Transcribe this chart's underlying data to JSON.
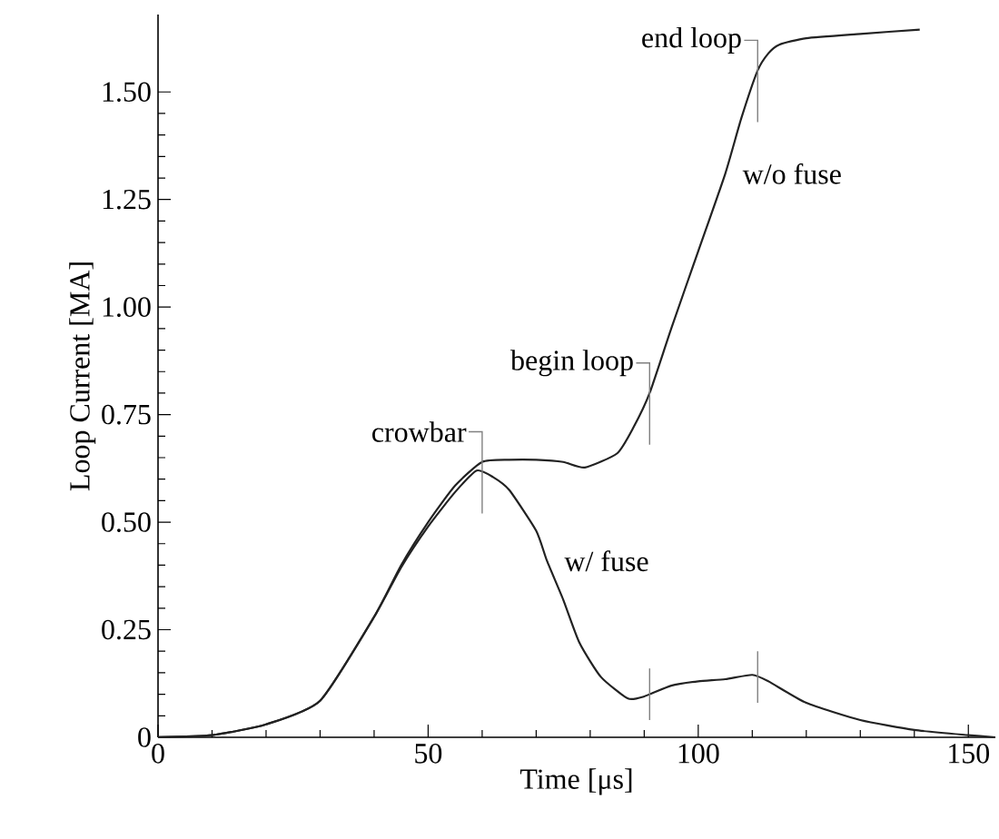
{
  "chart_data": {
    "type": "line",
    "xlabel": "Time  [μs]",
    "ylabel": "Loop Current  [MA]",
    "xlim": [
      0,
      155
    ],
    "ylim": [
      0,
      1.68
    ],
    "xticks": [
      0,
      50,
      100,
      150
    ],
    "yticks": [
      0,
      {
        "value": 0.25,
        "label": "0.25"
      },
      {
        "value": 0.5,
        "label": "0.50"
      },
      {
        "value": 0.75,
        "label": "0.75"
      },
      {
        "value": 1,
        "label": "1.00"
      },
      {
        "value": 1.25,
        "label": "1.25"
      },
      {
        "value": 1.5,
        "label": "1.50"
      }
    ],
    "grid": false,
    "legend": false,
    "marker": "none",
    "line_style": "solid",
    "series": [
      {
        "name": "w/o fuse",
        "color": "#222222",
        "x": [
          0,
          10,
          20,
          30,
          40,
          45,
          50,
          55,
          60,
          65,
          70,
          75,
          79,
          85,
          88,
          91,
          95,
          100,
          105,
          108,
          111,
          113,
          115,
          120,
          130,
          141
        ],
        "values": [
          0,
          0.005,
          0.03,
          0.085,
          0.28,
          0.4,
          0.5,
          0.585,
          0.64,
          0.645,
          0.645,
          0.64,
          0.627,
          0.66,
          0.72,
          0.8,
          0.95,
          1.13,
          1.31,
          1.44,
          1.55,
          1.59,
          1.61,
          1.625,
          1.635,
          1.645
        ]
      },
      {
        "name": "w/ fuse",
        "color": "#222222",
        "x": [
          0,
          10,
          20,
          30,
          40,
          45,
          50,
          55,
          59,
          62,
          65,
          70,
          72,
          75,
          78,
          82,
          87,
          90,
          95,
          100,
          105,
          110,
          113,
          120,
          130,
          140,
          150,
          155
        ],
        "values": [
          0,
          0.005,
          0.03,
          0.085,
          0.28,
          0.395,
          0.49,
          0.57,
          0.62,
          0.605,
          0.575,
          0.48,
          0.41,
          0.32,
          0.22,
          0.14,
          0.09,
          0.095,
          0.12,
          0.13,
          0.135,
          0.145,
          0.13,
          0.08,
          0.04,
          0.017,
          0.005,
          0
        ]
      }
    ],
    "annotations": [
      {
        "text": "crowbar",
        "x": 60,
        "y": 0.64
      },
      {
        "text": "begin loop",
        "x": 91,
        "y": 0.8
      },
      {
        "text": "end loop",
        "x": 111,
        "y": 1.55
      }
    ]
  }
}
